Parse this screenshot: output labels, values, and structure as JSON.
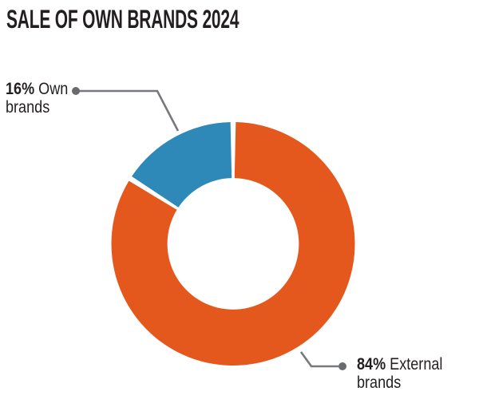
{
  "title": "SALE OF OWN BRANDS 2024",
  "chart_data": {
    "type": "pie",
    "variant": "donut",
    "title": "SALE OF OWN BRANDS 2024",
    "categories": [
      "Own brands",
      "External brands"
    ],
    "values": [
      16,
      84
    ],
    "unit": "%",
    "series_colors": [
      "#2E89B8",
      "#E4581D"
    ],
    "inner_radius_ratio": 0.54,
    "start_angle_deg": 0,
    "clockwise_order": [
      1,
      0
    ],
    "gap_between_segments": true,
    "labels": [
      {
        "pct": "16%",
        "name": "Own brands"
      },
      {
        "pct": "84%",
        "name": "External brands"
      }
    ],
    "leader_line_color": "#77787B",
    "leader_dot_color": "#6A6B6E",
    "text_color": "#231F20",
    "background_color": "#FFFFFF"
  }
}
